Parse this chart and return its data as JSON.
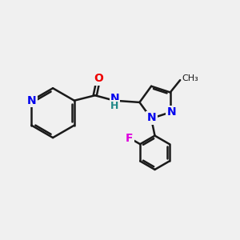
{
  "background_color": "#f0f0f0",
  "bond_color": "#1a1a1a",
  "bond_width": 1.8,
  "atom_colors": {
    "N": "#0000ee",
    "O": "#ee0000",
    "F": "#dd00dd",
    "C": "#1a1a1a",
    "H": "#228888"
  },
  "font_size": 10,
  "figsize": [
    3.0,
    3.0
  ],
  "dpi": 100
}
